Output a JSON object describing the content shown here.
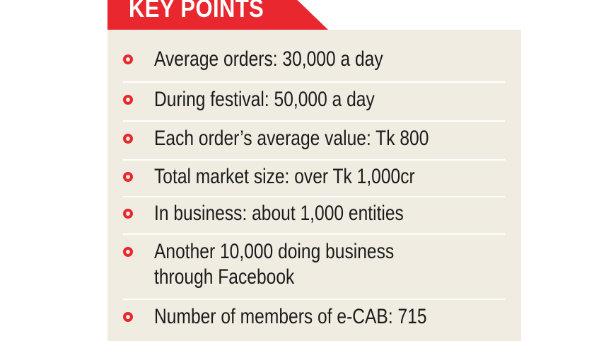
{
  "header": {
    "title": "KEY POINTS"
  },
  "points": [
    "Average orders: 30,000 a day",
    "During festival: 50,000 a day",
    "Each order’s average value: Tk 800",
    "Total market size: over Tk 1,000cr",
    "In business: about 1,000 entities",
    "Another 10,000 doing business",
    "through Facebook",
    "Number of members of e-CAB: 715"
  ],
  "colors": {
    "accent": "#e8272e",
    "panel": "#f0ece2",
    "text": "#1b1b1b"
  }
}
